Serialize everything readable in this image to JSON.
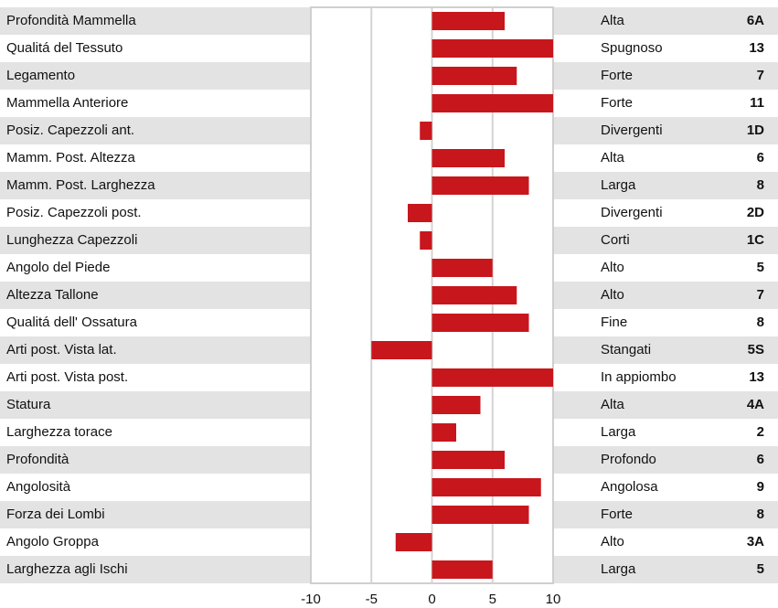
{
  "chart_data": {
    "type": "bar",
    "orientation": "horizontal",
    "color": "#c8161d",
    "categories": [
      "Profondità Mammella",
      "Qualitá del Tessuto",
      "Legamento",
      "Mammella Anteriore",
      "Posiz. Capezzoli ant.",
      "Mamm. Post. Altezza",
      "Mamm. Post. Larghezza",
      "Posiz. Capezzoli post.",
      "Lunghezza Capezzoli",
      "Angolo del Piede",
      "Altezza Tallone",
      "Qualitá dell' Ossatura",
      "Arti post. Vista lat.",
      "Arti post. Vista post.",
      "Statura",
      "Larghezza torace",
      "Profondità",
      "Angolosità",
      "Forza dei Lombi",
      "Angolo Groppa",
      "Larghezza agli Ischi"
    ],
    "values": [
      6,
      10,
      7,
      10,
      -1,
      6,
      8,
      -2,
      -1,
      5,
      7,
      8,
      -5,
      10,
      4,
      2,
      6,
      9,
      8,
      -3,
      5
    ],
    "descriptors": [
      "Alta",
      "Spugnoso",
      "Forte",
      "Forte",
      "Divergenti",
      "Alta",
      "Larga",
      "Divergenti",
      "Corti",
      "Alto",
      "Alto",
      "Fine",
      "Stangati",
      "In appiombo",
      "Alta",
      "Larga",
      "Profondo",
      "Angolosa",
      "Forte",
      "Alto",
      "Larga"
    ],
    "codes": [
      "6A",
      "13",
      "7",
      "11",
      "1D",
      "6",
      "8",
      "2D",
      "1C",
      "5",
      "7",
      "8",
      "5S",
      "13",
      "4A",
      "2",
      "6",
      "9",
      "8",
      "3A",
      "5"
    ],
    "xlim": [
      -10,
      10
    ],
    "xticks": [
      -10,
      -5,
      0,
      5,
      10
    ],
    "grid": true
  }
}
